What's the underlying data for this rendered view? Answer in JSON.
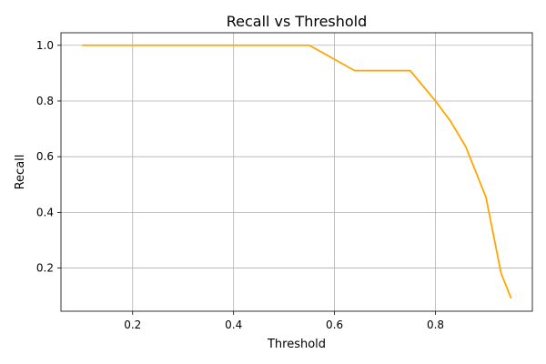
{
  "chart_data": {
    "type": "line",
    "title": "Recall vs Threshold",
    "xlabel": "Threshold",
    "ylabel": "Recall",
    "xlim": [
      0.058,
      0.992
    ],
    "ylim": [
      0.045,
      1.045
    ],
    "xticks": [
      0.2,
      0.4,
      0.6,
      0.8
    ],
    "xtick_labels": [
      "0.2",
      "0.4",
      "0.6",
      "0.8"
    ],
    "yticks": [
      0.2,
      0.4,
      0.6,
      0.8,
      1.0
    ],
    "ytick_labels": [
      "0.2",
      "0.4",
      "0.6",
      "0.8",
      "1.0"
    ],
    "grid": true,
    "legend": null,
    "series": [
      {
        "color": "#ffa500",
        "x": [
          0.1,
          0.55,
          0.64,
          0.75,
          0.8,
          0.83,
          0.86,
          0.9,
          0.93,
          0.95
        ],
        "y": [
          1.0,
          1.0,
          0.909,
          0.909,
          0.8,
          0.727,
          0.636,
          0.455,
          0.182,
          0.091
        ]
      }
    ]
  }
}
